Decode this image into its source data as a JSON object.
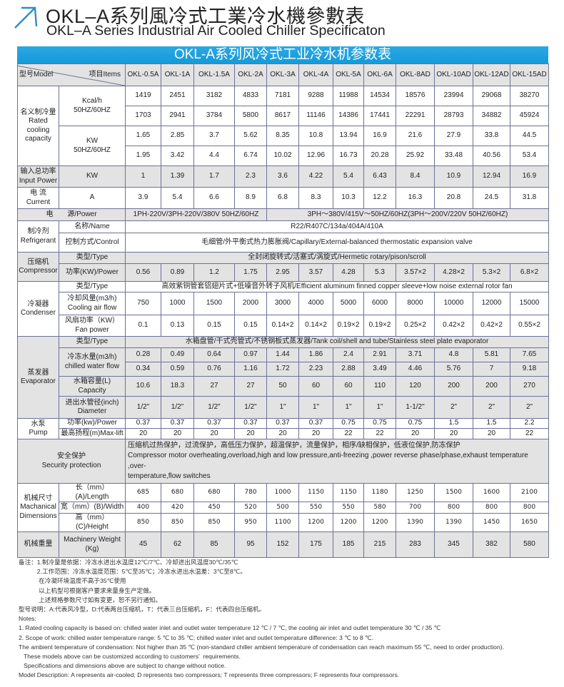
{
  "header": {
    "title_cn": "OKL–A系列風冷式工業冷水機參數表",
    "title_en": "OKL–A Series Industrial Air Cooled Chiller Specificaton",
    "icon": "arrow-up-right-icon",
    "accent": "#1a9ad8"
  },
  "table": {
    "title": "OKL-A系列风冷式工业冷水机参数表",
    "model_label": "型号Model",
    "items_label": "项目Items",
    "models": [
      "OKL-0.5A",
      "OKL-1A",
      "OKL-1.5A",
      "OKL-2A",
      "OKL-3A",
      "OKL-4A",
      "OKL-5A",
      "OKL-6A",
      "OKL-8AD",
      "OKL-10AD",
      "OKL-12AD",
      "OKL-15AD"
    ],
    "rows": [
      {
        "group": "名义制冷量\nRated\ncooling\ncapacity",
        "group_rows": 4,
        "sub": "Kcal/h\n50HZ/60HZ",
        "sub_rows": 2,
        "values": [
          "1419",
          "2451",
          "3182",
          "4833",
          "7181",
          "9288",
          "11988",
          "14534",
          "18576",
          "23994",
          "29068",
          "38270"
        ]
      },
      {
        "values": [
          "1703",
          "2941",
          "3784",
          "5800",
          "8617",
          "11146",
          "14386",
          "17441",
          "22291",
          "28793",
          "34882",
          "45924"
        ]
      },
      {
        "sub": "KW\n50HZ/60HZ",
        "sub_rows": 2,
        "values": [
          "1.65",
          "2.85",
          "3.7",
          "5.62",
          "8.35",
          "10.8",
          "13.94",
          "16.9",
          "21.6",
          "27.9",
          "33.8",
          "44.5"
        ]
      },
      {
        "values": [
          "1.95",
          "3.42",
          "4.4",
          "6.74",
          "10.02",
          "12.96",
          "16.73",
          "20.28",
          "25.92",
          "33.48",
          "40.56",
          "53.4"
        ]
      },
      {
        "shaded": true,
        "group": "输入总功率\nInput Power",
        "sub": "KW",
        "values": [
          "1",
          "1.39",
          "1.7",
          "2.3",
          "3.6",
          "4.22",
          "5.4",
          "6.43",
          "8.4",
          "10.9",
          "12.94",
          "16.9"
        ]
      },
      {
        "group": "电 流\nCurrent",
        "sub": "A",
        "values": [
          "3.9",
          "5.4",
          "6.6",
          "8.9",
          "6.8",
          "8.3",
          "10.3",
          "12.2",
          "16.3",
          "20.8",
          "24.5",
          "31.8"
        ]
      },
      {
        "shaded": true,
        "label": "电　　源/Power",
        "spans": [
          {
            "text": "1PH-220V/3PH-220V/380V 50HZ/60HZ",
            "cols": 4
          },
          {
            "text": "3PH～380V/415V～50HZ/60HZ(3PH～200V/220V   50HZ/60HZ)",
            "cols": 8
          }
        ]
      },
      {
        "group": "制冷剂\nRefrigerant",
        "group_rows": 2,
        "sub": "名称/Name",
        "span": "R22/R407C/134a/404A/410A"
      },
      {
        "sub": "控制方式/Control",
        "span": "毛细管/外平衡式热力膨胀阀/Capillary/External-balanced thermostatic expansion valve"
      },
      {
        "shaded": true,
        "group": "压缩机\nCompressor",
        "group_rows": 2,
        "sub": "类型/Type",
        "span": "全封闭旋转式/活塞式/涡旋式/Hermetic rotary/pison/scroll"
      },
      {
        "shaded": true,
        "sub": "功率(KW)/Power",
        "values": [
          "0.56",
          "0.89",
          "1.2",
          "1.75",
          "2.95",
          "3.57",
          "4.28",
          "5.3",
          "3.57×2",
          "4.28×2",
          "5.3×2",
          "6.8×2"
        ]
      },
      {
        "group": "冷凝器\nCondenser",
        "group_rows": 3,
        "sub": "类型/Type",
        "span": "高效紫铜管套铝翅片式+低噪音外转子风机/Efficient aluminum finned copper sleeve+low noise external rotor fan"
      },
      {
        "sub": "冷却风量(m3/h)\nCooling air flow",
        "values": [
          "750",
          "1000",
          "1500",
          "2000",
          "3000",
          "4000",
          "5000",
          "6000",
          "8000",
          "10000",
          "12000",
          "15000"
        ]
      },
      {
        "sub": "风扇功率（KW）\nFan power",
        "values": [
          "0.1",
          "0.13",
          "0.15",
          "0.15",
          "0.14×2",
          "0.14×2",
          "0.19×2",
          "0.19×2",
          "0.25×2",
          "0.42×2",
          "0.42×2",
          "0.55×2"
        ]
      },
      {
        "shaded": true,
        "group": "蒸发器\nEvaporator",
        "group_rows": 5,
        "sub": "类型/Type",
        "span": "水箱盘管/干式壳管式/不锈钢板式蒸发器/Tank coil/shell and tube/Stainless steel plate evaporator"
      },
      {
        "shaded": true,
        "sub": "冷冻水量(m3/h)\nchilled water flow",
        "sub_rows": 2,
        "values": [
          "0.28",
          "0.49",
          "0.64",
          "0.97",
          "1.44",
          "1.86",
          "2.4",
          "2.91",
          "3.71",
          "4.8",
          "5.81",
          "7.65"
        ]
      },
      {
        "shaded": true,
        "values": [
          "0.34",
          "0.59",
          "0.76",
          "1.16",
          "1.72",
          "2.23",
          "2.88",
          "3.49",
          "4.46",
          "5.76",
          "7",
          "9.18"
        ]
      },
      {
        "shaded": true,
        "sub": "水箱容量(L)\nCapacity",
        "values": [
          "10.6",
          "18.3",
          "27",
          "27",
          "50",
          "60",
          "60",
          "110",
          "120",
          "200",
          "200",
          "270"
        ]
      },
      {
        "shaded": true,
        "sub": "进出水管径(inch)\nDiameter",
        "values": [
          "1/2\"",
          "1/2\"",
          "1/2\"",
          "1/2\"",
          "1\"",
          "1\"",
          "1\"",
          "1\"",
          "1-1/2\"",
          "2\"",
          "2\"",
          "2\""
        ]
      },
      {
        "group": "水泵\nPump",
        "group_rows": 2,
        "sub": "功率(kw)/Power",
        "values": [
          "0.37",
          "0.37",
          "0.37",
          "0.37",
          "0.37",
          "0.37",
          "0.75",
          "0.75",
          "0.75",
          "1.5",
          "1.5",
          "2.2"
        ]
      },
      {
        "sub": "最高扬程(m)Max-lift",
        "values": [
          "20",
          "20",
          "20",
          "20",
          "20",
          "20",
          "22",
          "22",
          "20",
          "20",
          "20",
          "22"
        ]
      },
      {
        "shaded": true,
        "label": "安全保护\nSecurity protection",
        "span": "压缩机过热保护，过流保护，高低压力保护，超温保护，流量保护，相序/缺相保护，低液位保护,防冻保护\nCompressor motor overheating,overload,high and low pressure,anti-freezing ,power reverse phase/phase,exhaust temperature ,over-\ntemperature,flow switches",
        "span_left": true
      },
      {
        "dims": true,
        "group": "机械尺寸\nMachanical\nDimensions",
        "group_rows": 3,
        "sub": "长（mm）(A)/Length",
        "values": [
          "685",
          "680",
          "680",
          "780",
          "1000",
          "1150",
          "1150",
          "1180",
          "1250",
          "1500",
          "1600",
          "2100"
        ]
      },
      {
        "dims": true,
        "sub": "宽（mm）(B)/Width",
        "values": [
          "400",
          "420",
          "450",
          "520",
          "500",
          "550",
          "550",
          "580",
          "700",
          "800",
          "800",
          "800"
        ]
      },
      {
        "dims": true,
        "sub": "高（mm）(C)/Height",
        "values": [
          "850",
          "850",
          "850",
          "950",
          "1100",
          "1200",
          "1200",
          "1200",
          "1390",
          "1390",
          "1450",
          "1650"
        ]
      },
      {
        "shaded": true,
        "group": "机械重量",
        "sub": "Machinery Weight\n(Kg)",
        "values": [
          "45",
          "62",
          "85",
          "95",
          "152",
          "175",
          "185",
          "215",
          "283",
          "345",
          "382",
          "580"
        ]
      }
    ]
  },
  "notes": {
    "cn": [
      "备注：1.制冷量是依据：冷冻水进出水温度12℃/7℃、冷却进出风温度30℃/35℃",
      "　　　2.工作范围：冷冻水温度范围：5℃至35℃；冷冻水进出水温差：3℃至8℃。",
      "　　　 在冷凝环境温度不高于35℃使用",
      "　　　 以上机型可根据客户要求来量身生产定做。",
      "　　　 上述规格参数尺寸如有变更，恕不另行通知。",
      "型号说明：A:代表风冷型，D:代表两台压缩机，T：代表三台压缩机，F：代表四台压缩机。"
    ],
    "en": [
      "Notes:",
      "1. Rated cooling capacity is based on: chilled water inlet and outlet water temperature 12 ℃ / 7 ℃, the cooling air inlet and outlet temperature 30 ℃ / 35 ℃",
      "2. Scope of work: chilled water temperature range: 5 ℃ to 35 ℃; chilled water inlet and outlet temperature difference: 3 ℃ to 8 ℃.",
      "The ambient temperature of condensation: Not higher than 35 ℃ (non-standard chiller ambient temperature of condensation can reach maximum 55 ℃, need to order production).",
      "   These models above can be customized according to customers’  requirements.",
      "   Specifications and dimensions above are subject to change without notice.",
      "Model Description: A represents air-cooled; D represents two compressors; T represents three compressors; F represents four compressors."
    ]
  }
}
